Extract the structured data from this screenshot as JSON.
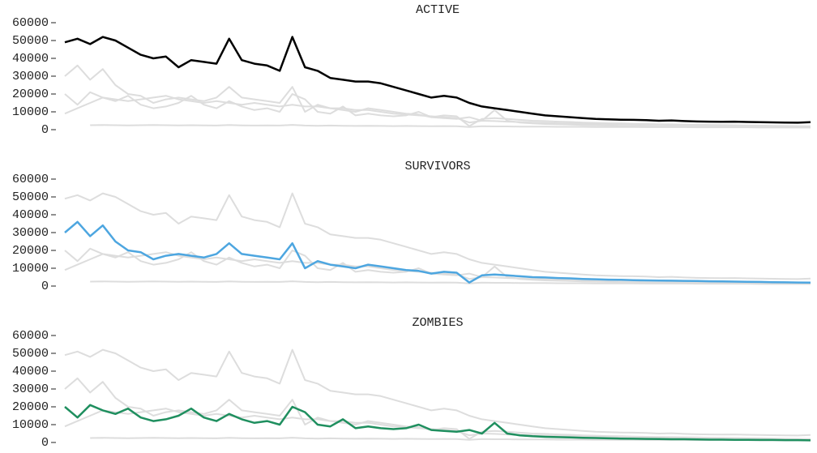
{
  "chart_data": {
    "type": "line",
    "ylim": [
      0,
      60000
    ],
    "yticks": [
      0,
      10000,
      20000,
      30000,
      40000,
      50000,
      60000
    ],
    "muted_color": "#dddddd",
    "series": [
      {
        "name": "ACTIVE",
        "color": "#000000",
        "values": [
          49000,
          51000,
          48000,
          52000,
          50000,
          46000,
          42000,
          40000,
          41000,
          35000,
          39000,
          38000,
          37000,
          51000,
          39000,
          37000,
          36000,
          33000,
          52000,
          35000,
          33000,
          29000,
          28000,
          27000,
          27000,
          26000,
          24000,
          22000,
          20000,
          18000,
          19000,
          18000,
          15000,
          13000,
          12000,
          11000,
          10000,
          9000,
          8000,
          7500,
          7000,
          6500,
          6000,
          5800,
          5600,
          5500,
          5300,
          5000,
          5200,
          4800,
          4600,
          4500,
          4400,
          4500,
          4300,
          4200,
          4100,
          4000,
          3900,
          4200
        ]
      },
      {
        "name": "SURVIVORS",
        "color": "#4da6e0",
        "values": [
          30000,
          36000,
          28000,
          34000,
          25000,
          20000,
          19000,
          15000,
          17000,
          18000,
          17000,
          16000,
          18000,
          24000,
          18000,
          17000,
          16000,
          15000,
          24000,
          10000,
          14000,
          12000,
          11000,
          10000,
          12000,
          11000,
          10000,
          9000,
          8500,
          7000,
          8000,
          7500,
          2000,
          6000,
          6500,
          6000,
          5500,
          5000,
          4800,
          4500,
          4300,
          4000,
          3800,
          3600,
          3500,
          3300,
          3200,
          3100,
          3000,
          2900,
          2800,
          2700,
          2600,
          2500,
          2400,
          2300,
          2200,
          2100,
          2000,
          1900
        ]
      },
      {
        "name": "ZOMBIES",
        "color": "#1f8f5f",
        "values": [
          20000,
          14000,
          21000,
          18000,
          16000,
          19000,
          14000,
          12000,
          13000,
          15000,
          19000,
          14000,
          12000,
          16000,
          13000,
          11000,
          12000,
          10000,
          20000,
          17000,
          10000,
          9000,
          13000,
          8000,
          9000,
          8000,
          7500,
          8000,
          10000,
          7000,
          6500,
          6000,
          7000,
          5000,
          11000,
          5000,
          4000,
          3500,
          3200,
          3000,
          2800,
          2600,
          2500,
          2300,
          2200,
          2100,
          2000,
          1900,
          1800,
          1800,
          1700,
          1600,
          1600,
          1500,
          1500,
          1400,
          1400,
          1300,
          1300,
          1200
        ]
      },
      {
        "values": [
          9000,
          12000,
          15000,
          18000,
          17000,
          16000,
          17000,
          18000,
          19000,
          17000,
          16000,
          15000,
          16000,
          15000,
          14000,
          15000,
          14000,
          13000,
          14000,
          13000,
          13000,
          12000,
          12000,
          11000,
          11000,
          10000,
          9000,
          8500,
          8000,
          7500,
          7000,
          6500,
          4000,
          5000,
          4800,
          4500,
          4300,
          4000,
          3800,
          3600,
          3500,
          3400,
          3300,
          3200,
          3100,
          3000,
          2900,
          2800,
          2700,
          2600,
          2500,
          2400,
          2300,
          2200,
          2100,
          2000,
          1900,
          1800,
          1700,
          1600
        ]
      },
      {
        "values": [
          null,
          null,
          2500,
          2600,
          2500,
          2400,
          2500,
          2600,
          2500,
          2400,
          2500,
          2400,
          2300,
          2600,
          2400,
          2300,
          2400,
          2300,
          2700,
          2300,
          2200,
          2300,
          2200,
          2100,
          2200,
          2100,
          2000,
          2100,
          2000,
          1900,
          2000,
          1900,
          1500,
          1900,
          1800,
          1800,
          1700,
          1700,
          1700,
          1600,
          1600,
          1600,
          1500,
          1500,
          1500,
          1500,
          1400,
          1400,
          1400,
          1400,
          1300,
          1300,
          1300,
          1300,
          1300,
          1200,
          1200,
          1200,
          1200,
          1200
        ]
      }
    ]
  }
}
